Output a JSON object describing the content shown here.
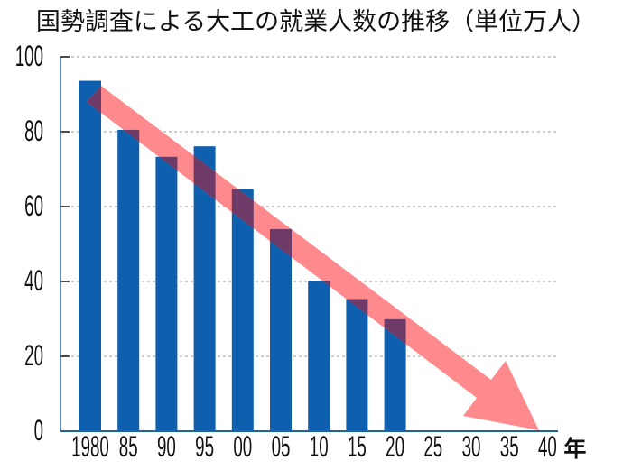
{
  "chart_data": {
    "type": "bar",
    "title": "国勢調査による大工の就業人数の推移（単位万人）",
    "xlabel": "",
    "x_unit_suffix": "年",
    "ylabel": "",
    "unit": "万人",
    "ylim": [
      0,
      100
    ],
    "yticks": [
      0,
      20,
      40,
      60,
      80,
      100
    ],
    "grid": true,
    "categories": [
      "1980",
      "85",
      "90",
      "95",
      "00",
      "05",
      "10",
      "15",
      "20",
      "25",
      "30",
      "35",
      "40"
    ],
    "values": [
      93.6,
      80.5,
      73.3,
      76.1,
      64.6,
      54.0,
      40.2,
      35.3,
      29.9,
      null,
      null,
      null,
      null
    ],
    "annotations": [
      {
        "type": "trend-arrow",
        "description": "downward trend arrow from 1980 toward 2040 reaching zero",
        "from": {
          "x": "1980",
          "y": 90
        },
        "to": {
          "x": "40",
          "y": 0
        }
      }
    ],
    "colors": {
      "bar": "#0e5fad",
      "arrow": "#ff8a8e",
      "overlap": "#6e3a68",
      "axis": "#1d63a8",
      "grid": "#9a9a9a"
    }
  }
}
